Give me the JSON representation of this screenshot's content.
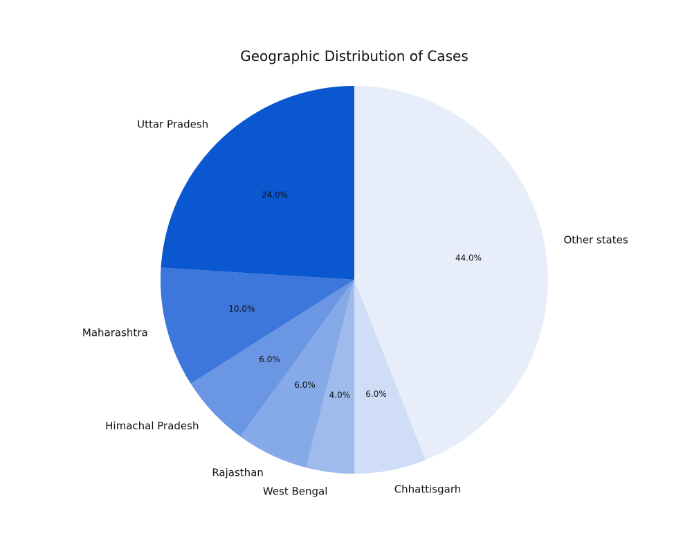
{
  "chart_data": {
    "type": "pie",
    "title": "Geographic Distribution of Cases",
    "slices": [
      {
        "label": "Uttar Pradesh",
        "value": 24.0,
        "pct_label": "24.0%",
        "color": "#0b57d0"
      },
      {
        "label": "Maharashtra",
        "value": 10.0,
        "pct_label": "10.0%",
        "color": "#3d77db"
      },
      {
        "label": "Himachal Pradesh",
        "value": 6.0,
        "pct_label": "6.0%",
        "color": "#6a96e3"
      },
      {
        "label": "Rajasthan",
        "value": 6.0,
        "pct_label": "6.0%",
        "color": "#86a9e7"
      },
      {
        "label": "West Bengal",
        "value": 4.0,
        "pct_label": "4.0%",
        "color": "#9ebbec"
      },
      {
        "label": "Chhattisgarh",
        "value": 6.0,
        "pct_label": "6.0%",
        "color": "#cfddf6"
      },
      {
        "label": "Other states",
        "value": 44.0,
        "pct_label": "44.0%",
        "color": "#e7eefa"
      }
    ],
    "start": "top",
    "direction": "counterclockwise",
    "legend": "none"
  }
}
